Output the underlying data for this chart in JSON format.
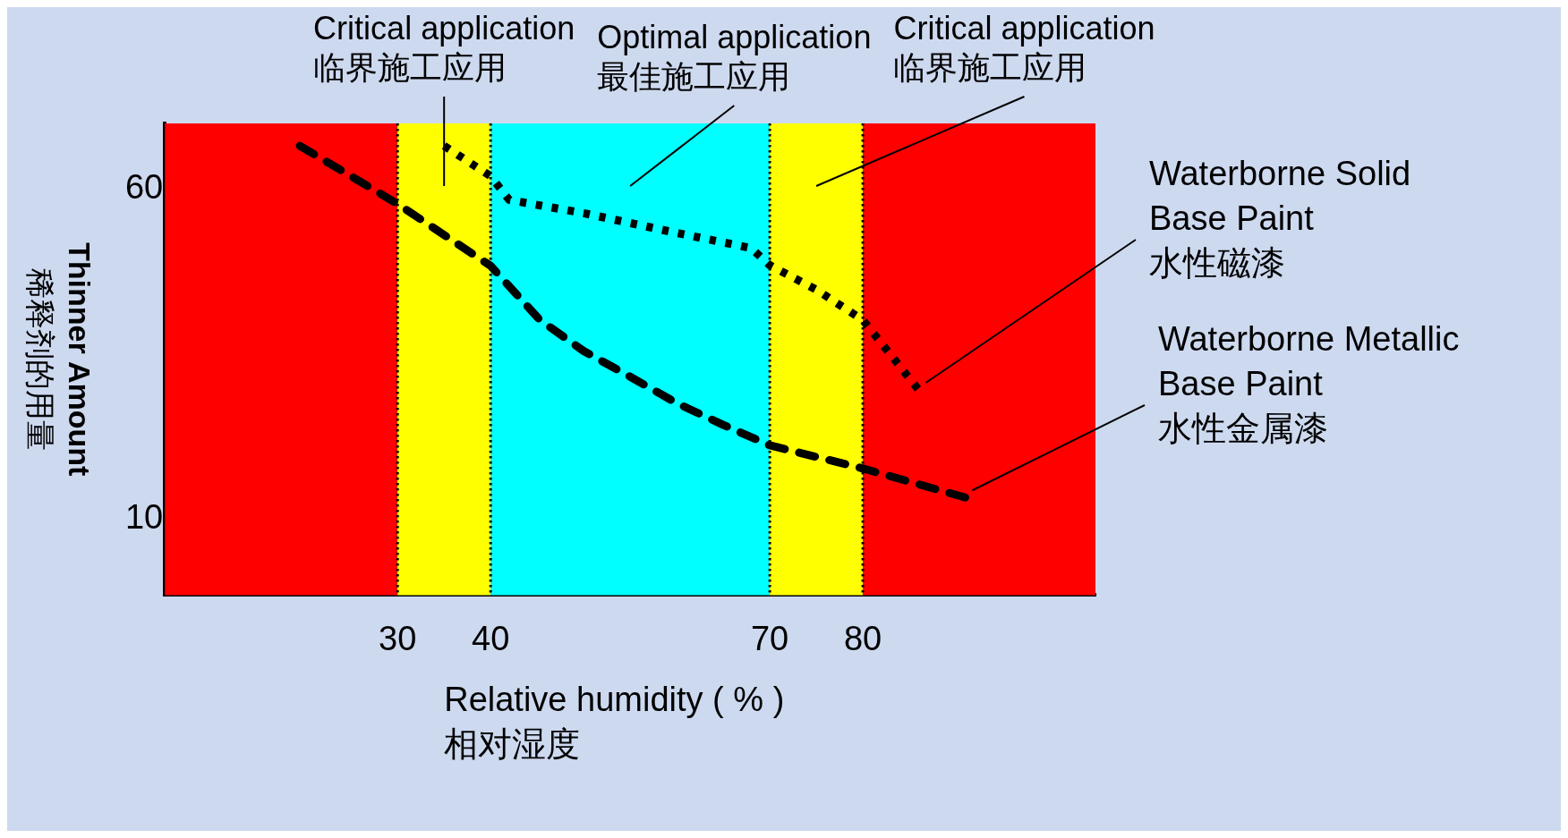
{
  "chart_data": {
    "type": "line",
    "xlabel": "Relative humidity ( % )\n相对湿度",
    "ylabel": "Thinner Amount\n稀释剂的用量",
    "xlim": [
      5,
      105
    ],
    "xticks": [
      30,
      40,
      70,
      80
    ],
    "ylim": [
      -1.5,
      70
    ],
    "yticks": [
      10,
      60
    ],
    "grid": false,
    "legend": false,
    "marker": "none",
    "series": [
      {
        "name": "Waterborne Solid\nBase Paint\n水性磁漆",
        "color": "#000000",
        "line_style": "dotted",
        "x": [
          35,
          40,
          42,
          50,
          60,
          68,
          70,
          75,
          80,
          83,
          86
        ],
        "values": [
          66.6,
          62,
          58.4,
          56.4,
          53.4,
          51.1,
          48.5,
          44.8,
          40.2,
          34.9,
          29.6
        ]
      },
      {
        "name": "Waterborne Metallic\nBase Paint\n水性金属漆",
        "color": "#000000",
        "line_style": "dashed",
        "x": [
          19.5,
          30,
          40,
          45.3,
          50,
          55,
          60,
          65,
          70,
          80,
          91
        ],
        "values": [
          66.6,
          57.8,
          48.4,
          40.2,
          35.5,
          31.6,
          27.6,
          24.3,
          21.2,
          17.7,
          13.3
        ]
      }
    ],
    "bands": [
      {
        "axis": "x",
        "from": 5,
        "to": 30,
        "color": "#ff0000"
      },
      {
        "axis": "x",
        "from": 30,
        "to": 40,
        "color": "#ffff00",
        "label": "Critical application\n临界施工应用"
      },
      {
        "axis": "x",
        "from": 40,
        "to": 70,
        "color": "#00ffff",
        "label": "Optimal application\n最佳施工应用"
      },
      {
        "axis": "x",
        "from": 70,
        "to": 80,
        "color": "#ffff00",
        "label": "Critical application\n临界施工应用"
      },
      {
        "axis": "x",
        "from": 80,
        "to": 105,
        "color": "#ff0000"
      }
    ],
    "ref_lines": [
      {
        "axis": "x",
        "value": 30,
        "color": "#000000",
        "line_style": "dotted"
      },
      {
        "axis": "x",
        "value": 40,
        "color": "#000000",
        "line_style": "dotted"
      },
      {
        "axis": "x",
        "value": 70,
        "color": "#000000",
        "line_style": "dotted"
      },
      {
        "axis": "x",
        "value": 80,
        "color": "#000000",
        "line_style": "dotted"
      }
    ]
  }
}
